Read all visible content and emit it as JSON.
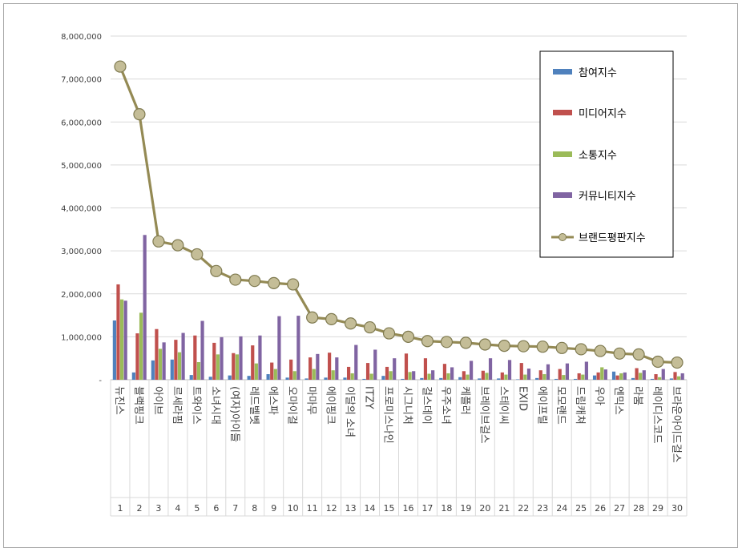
{
  "chart_data": {
    "type": "bar",
    "title": "",
    "xlabel": "",
    "ylabel": "",
    "ylim": [
      0,
      8000000
    ],
    "yticks": [
      0,
      1000000,
      2000000,
      3000000,
      4000000,
      5000000,
      6000000,
      7000000,
      8000000
    ],
    "ytick_labels": [
      "-",
      "1,000,000",
      "2,000,000",
      "3,000,000",
      "4,000,000",
      "5,000,000",
      "6,000,000",
      "7,000,000",
      "8,000,000"
    ],
    "grid": true,
    "legend_position": "top-right",
    "ranks": [
      "1",
      "2",
      "3",
      "4",
      "5",
      "6",
      "7",
      "8",
      "9",
      "10",
      "11",
      "12",
      "13",
      "14",
      "15",
      "16",
      "17",
      "18",
      "19",
      "20",
      "21",
      "22",
      "23",
      "24",
      "25",
      "26",
      "27",
      "28",
      "29",
      "30"
    ],
    "categories": [
      "뉴진스",
      "블랙핑크",
      "아이브",
      "르세라핌",
      "트와이스",
      "소녀시대",
      "(여자)아이들",
      "레드벨벳",
      "에스파",
      "오마이걸",
      "마마무",
      "에이핑크",
      "이달의 소녀",
      "ITZY",
      "프로미스나인",
      "시그니처",
      "걸스데이",
      "우주소녀",
      "케플러",
      "브레이브걸스",
      "스테이씨",
      "EXID",
      "에이프릴",
      "모모랜드",
      "드림캐쳐",
      "우아",
      "엔믹스",
      "라붐",
      "레이디스코드",
      "브라운아이드걸스"
    ],
    "series": [
      {
        "name": "참여지수",
        "type": "bar",
        "color": "#4f81bd",
        "values": [
          1380000,
          170000,
          450000,
          470000,
          110000,
          70000,
          100000,
          90000,
          130000,
          50000,
          30000,
          50000,
          50000,
          20000,
          90000,
          20000,
          40000,
          40000,
          60000,
          30000,
          30000,
          10000,
          40000,
          20000,
          20000,
          100000,
          190000,
          40000,
          20000,
          30000
        ]
      },
      {
        "name": "미디어지수",
        "type": "bar",
        "color": "#c0504d",
        "values": [
          2220000,
          1080000,
          1180000,
          930000,
          1030000,
          860000,
          620000,
          800000,
          400000,
          470000,
          520000,
          630000,
          300000,
          390000,
          300000,
          610000,
          500000,
          370000,
          200000,
          210000,
          170000,
          390000,
          220000,
          250000,
          150000,
          170000,
          100000,
          270000,
          130000,
          180000
        ]
      },
      {
        "name": "소통지수",
        "type": "bar",
        "color": "#9bbb59",
        "values": [
          1870000,
          1560000,
          720000,
          640000,
          410000,
          590000,
          590000,
          380000,
          250000,
          200000,
          250000,
          220000,
          150000,
          140000,
          200000,
          180000,
          140000,
          150000,
          120000,
          160000,
          120000,
          120000,
          130000,
          110000,
          120000,
          290000,
          150000,
          160000,
          60000,
          80000
        ]
      },
      {
        "name": "커뮤니티지수",
        "type": "bar",
        "color": "#8064a2",
        "values": [
          1840000,
          3370000,
          870000,
          1090000,
          1370000,
          990000,
          1010000,
          1030000,
          1480000,
          1490000,
          600000,
          520000,
          810000,
          700000,
          500000,
          200000,
          220000,
          290000,
          440000,
          500000,
          460000,
          260000,
          360000,
          380000,
          420000,
          240000,
          170000,
          220000,
          250000,
          150000
        ]
      },
      {
        "name": "브랜드평판지수",
        "type": "line",
        "color": "#948a54",
        "values": [
          7290000,
          6180000,
          3220000,
          3130000,
          2920000,
          2530000,
          2330000,
          2300000,
          2250000,
          2220000,
          1450000,
          1410000,
          1310000,
          1220000,
          1080000,
          1000000,
          900000,
          880000,
          860000,
          820000,
          790000,
          780000,
          770000,
          740000,
          710000,
          670000,
          610000,
          590000,
          420000,
          400000
        ]
      }
    ]
  }
}
